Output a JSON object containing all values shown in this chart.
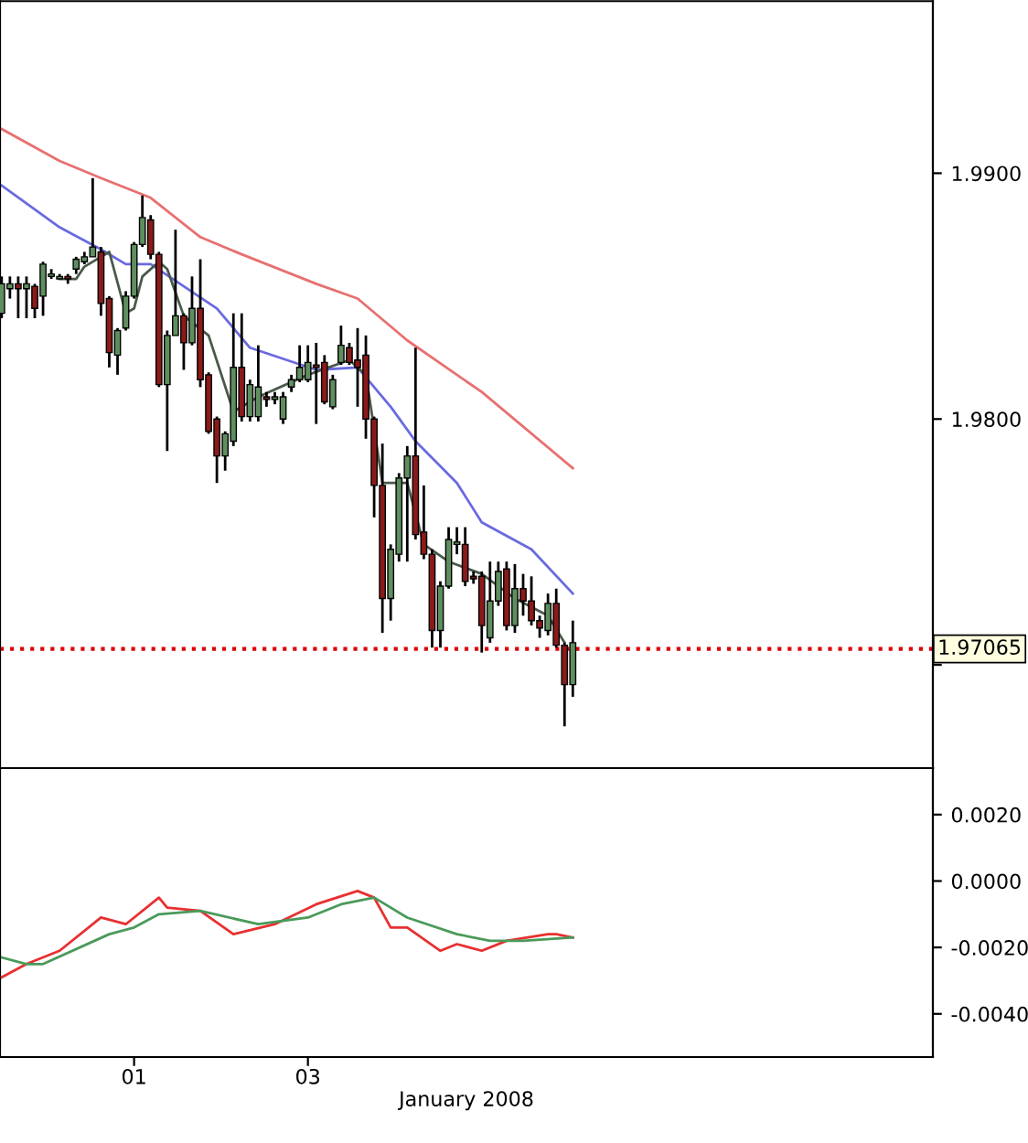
{
  "chart_data": [
    {
      "type": "candlestick",
      "categories": [
        null,
        null,
        null,
        null,
        null,
        null,
        null,
        null,
        null,
        null,
        null,
        null,
        null,
        null,
        null,
        null,
        "01",
        null,
        null,
        null,
        null,
        null,
        null,
        null,
        null,
        null,
        null,
        null,
        null,
        null,
        null,
        null,
        null,
        null,
        null,
        null,
        null,
        "03",
        null,
        null,
        null,
        null,
        null,
        null,
        null,
        null,
        null,
        null,
        null,
        null,
        null,
        null,
        null,
        null,
        null,
        null,
        null,
        null,
        null,
        null,
        null,
        null,
        null,
        null,
        null,
        null,
        null,
        null,
        null,
        null,
        null,
        null,
        null,
        null,
        null,
        null,
        null,
        null,
        null,
        null,
        null,
        null,
        null,
        null,
        null,
        null,
        null,
        null,
        null,
        null,
        null,
        null,
        null,
        null,
        null,
        null,
        null,
        null,
        null,
        null,
        null,
        null,
        null,
        null,
        null,
        null,
        null,
        null,
        null,
        null,
        null,
        null,
        null
      ],
      "ohlc": [
        [
          1.9843,
          1.9858,
          1.9841,
          1.9855
        ],
        [
          1.9853,
          1.9858,
          1.9849,
          1.9855
        ],
        [
          1.9855,
          1.9858,
          1.9841,
          1.9853
        ],
        [
          1.9853,
          1.9858,
          1.9841,
          1.9855
        ],
        [
          1.9854,
          1.9855,
          1.9841,
          1.9845
        ],
        [
          1.985,
          1.9864,
          1.9842,
          1.9863
        ],
        [
          1.9858,
          1.9861,
          1.9857,
          1.9859
        ],
        [
          1.9857,
          1.9859,
          1.9857,
          1.9858
        ],
        [
          1.9858,
          1.9859,
          1.9855,
          1.9857
        ],
        [
          1.9861,
          1.9866,
          1.9859,
          1.9865
        ],
        [
          1.9864,
          1.9868,
          1.9863,
          1.9866
        ],
        [
          1.9866,
          1.9898,
          1.9866,
          1.987
        ],
        [
          1.9868,
          1.987,
          1.9842,
          1.9847
        ],
        [
          1.9849,
          1.985,
          1.9821,
          1.9827
        ],
        [
          1.9826,
          1.9837,
          1.9818,
          1.9836
        ],
        [
          1.9837,
          1.9852,
          1.9836,
          1.985
        ],
        [
          1.985,
          1.9872,
          1.9849,
          1.9871
        ],
        [
          1.9871,
          1.9891,
          1.987,
          1.9882
        ],
        [
          1.9881,
          1.9883,
          1.9865,
          1.9867
        ],
        [
          1.9867,
          1.9868,
          1.9813,
          1.9814
        ],
        [
          1.9814,
          1.9836,
          1.9787,
          1.9834
        ],
        [
          1.9834,
          1.9877,
          1.9834,
          1.9842
        ],
        [
          1.9842,
          1.9843,
          1.982,
          1.9831
        ],
        [
          1.9831,
          1.9858,
          1.983,
          1.9845
        ],
        [
          1.9845,
          1.9865,
          1.9813,
          1.9816
        ],
        [
          1.9818,
          1.9819,
          1.9794,
          1.9795
        ],
        [
          1.98,
          1.9801,
          1.9774,
          1.9785
        ],
        [
          1.9785,
          1.9795,
          1.9779,
          1.9794
        ],
        [
          1.9791,
          1.9843,
          1.9789,
          1.9821
        ],
        [
          1.9821,
          1.9843,
          1.9799,
          1.9801
        ],
        [
          1.9801,
          1.9816,
          1.9799,
          1.9814
        ],
        [
          1.9801,
          1.983,
          1.9799,
          1.9813
        ],
        [
          1.9809,
          1.9811,
          1.9805,
          1.9808
        ],
        [
          1.9808,
          1.9811,
          1.9806,
          1.9809
        ],
        [
          1.98,
          1.9811,
          1.9798,
          1.9809
        ],
        [
          1.9813,
          1.9818,
          1.9811,
          1.9816
        ],
        [
          1.9816,
          1.983,
          1.9815,
          1.9821
        ],
        [
          1.9816,
          1.983,
          1.9815,
          1.9823
        ],
        [
          1.9822,
          1.9831,
          1.9798,
          1.9821
        ],
        [
          1.9823,
          1.9826,
          1.9806,
          1.9807
        ],
        [
          1.9805,
          1.9818,
          1.9804,
          1.9816
        ],
        [
          1.9823,
          1.9838,
          1.9822,
          1.983
        ],
        [
          1.9829,
          1.9831,
          1.9822,
          1.9823
        ],
        [
          1.9824,
          1.9837,
          1.9805,
          1.9821
        ],
        [
          1.9826,
          1.9834,
          1.9792,
          1.98
        ],
        [
          1.98,
          1.9801,
          1.976,
          1.9773
        ],
        [
          1.9773,
          1.979,
          1.9713,
          1.9727
        ],
        [
          1.9727,
          1.9749,
          1.9718,
          1.9747
        ],
        [
          1.9745,
          1.9778,
          1.9742,
          1.9776
        ],
        [
          1.9776,
          1.9789,
          1.9742,
          1.9785
        ],
        [
          1.9785,
          1.9829,
          1.9751,
          1.9753
        ],
        [
          1.9754,
          1.9773,
          1.9743,
          1.9745
        ],
        [
          1.9745,
          1.9747,
          1.9707,
          1.9714
        ],
        [
          1.9714,
          1.9734,
          1.9707,
          1.9732
        ],
        [
          1.9732,
          1.9756,
          1.9731,
          1.9751
        ],
        [
          1.9749,
          1.9756,
          1.9745,
          1.975
        ],
        [
          1.9749,
          1.9756,
          1.9732,
          1.9734
        ],
        [
          1.9736,
          1.9738,
          1.9733,
          1.9735
        ],
        [
          1.9736,
          1.9738,
          1.9705,
          1.9716
        ],
        [
          1.9711,
          1.9742,
          1.9709,
          1.9726
        ],
        [
          1.9726,
          1.9742,
          1.9724,
          1.9738
        ],
        [
          1.9739,
          1.9742,
          1.9714,
          1.9716
        ],
        [
          1.9716,
          1.9741,
          1.9713,
          1.9731
        ],
        [
          1.9731,
          1.9737,
          1.972,
          1.9726
        ],
        [
          1.9726,
          1.9736,
          1.9716,
          1.9718
        ],
        [
          1.9718,
          1.972,
          1.9711,
          1.9715
        ],
        [
          1.9714,
          1.9729,
          1.9712,
          1.9725
        ],
        [
          1.9725,
          1.9731,
          1.9707,
          1.9708
        ],
        [
          1.9708,
          1.9709,
          1.9675,
          1.9692
        ],
        [
          1.9692,
          1.9718,
          1.9687,
          1.9709
        ],
        null,
        null,
        null,
        null,
        null,
        null,
        null,
        null,
        null,
        null,
        null,
        null,
        null,
        null,
        null,
        null,
        null,
        null,
        null,
        null,
        null,
        null,
        null,
        null,
        null,
        null,
        null,
        null,
        null,
        null,
        null,
        null,
        null,
        null,
        null,
        null,
        null,
        null,
        null,
        null,
        null,
        null,
        null
      ],
      "series": [
        {
          "type": "line",
          "color": "#e87070",
          "values": [
            1.9918,
            null,
            null,
            null,
            null,
            null,
            null,
            1.9905,
            null,
            null,
            null,
            null,
            1.9898,
            null,
            null,
            null,
            null,
            null,
            1.989,
            null,
            null,
            null,
            null,
            null,
            1.9874,
            null,
            null,
            null,
            null,
            1.9867,
            null,
            null,
            null,
            null,
            null,
            null,
            null,
            null,
            1.9855,
            null,
            null,
            null,
            null,
            1.9849,
            null,
            null,
            null,
            null,
            null,
            1.9832,
            null,
            null,
            null,
            null,
            null,
            null,
            null,
            null,
            1.9811,
            null,
            null,
            null,
            null,
            null,
            null,
            null,
            null,
            null,
            null,
            1.978,
            null,
            null,
            null,
            null,
            null,
            null,
            null,
            null,
            null,
            null,
            null,
            null,
            null,
            null,
            null,
            null,
            null,
            null,
            null,
            null,
            null,
            null,
            null,
            null,
            null,
            null,
            null,
            null,
            null,
            null,
            null,
            null,
            null,
            null,
            null,
            null,
            null,
            null,
            null,
            null,
            null,
            null,
            null
          ]
        },
        {
          "type": "line",
          "color": "#6a6ae0",
          "values": [
            1.9895,
            null,
            null,
            null,
            null,
            null,
            null,
            1.9878,
            null,
            null,
            null,
            null,
            1.9869,
            null,
            null,
            1.9863,
            null,
            null,
            1.9863,
            null,
            null,
            null,
            1.9854,
            null,
            null,
            null,
            1.9845,
            null,
            null,
            null,
            1.9829,
            null,
            null,
            null,
            null,
            null,
            null,
            null,
            1.982,
            null,
            null,
            null,
            null,
            1.9821,
            null,
            null,
            null,
            1.9805,
            null,
            null,
            1.9791,
            null,
            null,
            null,
            null,
            1.9774,
            null,
            null,
            1.9758,
            null,
            null,
            null,
            null,
            null,
            1.9747,
            null,
            null,
            null,
            null,
            1.9729,
            null,
            null,
            null,
            null,
            null,
            null,
            null,
            null,
            null,
            null,
            null,
            null,
            null,
            null,
            null,
            null,
            null,
            null,
            null,
            null,
            null,
            null,
            null,
            null,
            null,
            null,
            null,
            null,
            null,
            null,
            null,
            null,
            null,
            null,
            null,
            null,
            null,
            null,
            null,
            null,
            null,
            null,
            null
          ]
        },
        {
          "type": "line",
          "color": "#4a5a4a",
          "values": [
            null,
            null,
            null,
            null,
            null,
            null,
            null,
            1.9857,
            null,
            1.9857,
            1.9862,
            null,
            null,
            1.9868,
            null,
            1.9843,
            1.9845,
            1.9858,
            null,
            1.9864,
            1.9861,
            null,
            1.9842,
            null,
            null,
            1.9834,
            null,
            null,
            1.9803,
            null,
            null,
            1.9809,
            null,
            null,
            null,
            null,
            null,
            1.9818,
            null,
            null,
            null,
            null,
            1.9824,
            null,
            1.9818,
            null,
            1.9774,
            null,
            null,
            1.9774,
            null,
            1.9749,
            null,
            null,
            1.9742,
            null,
            null,
            null,
            1.9737,
            null,
            null,
            null,
            1.9727,
            null,
            null,
            null,
            1.972,
            null,
            1.9709,
            null,
            null,
            null,
            null,
            null,
            null,
            null,
            null,
            null,
            null,
            null,
            null,
            null,
            null,
            null,
            null,
            null,
            null,
            null,
            null,
            null,
            null,
            null,
            null,
            null,
            null,
            null,
            null,
            null,
            null,
            null,
            null,
            null,
            null,
            null,
            null,
            null,
            null,
            null,
            null,
            null,
            null,
            null,
            null
          ]
        }
      ],
      "ylim": [
        1.9658,
        1.997
      ],
      "yticks": [
        {
          "value": 1.97,
          "label": null
        },
        {
          "value": 1.98,
          "label": "1.9800"
        },
        {
          "value": 1.99,
          "label": "1.9900"
        }
      ],
      "ref_lines": [
        {
          "axis": "y",
          "value": 1.97065,
          "label": "1.97065",
          "color": "#dd0000",
          "line_style": "dotted"
        }
      ],
      "tick_labels": "y"
    },
    {
      "type": "line",
      "categories": [
        null,
        null,
        null,
        null,
        null,
        null,
        null,
        null,
        null,
        null,
        null,
        null,
        null,
        null,
        null,
        null,
        "01",
        null,
        null,
        null,
        null,
        null,
        null,
        null,
        null,
        null,
        null,
        null,
        null,
        null,
        null,
        null,
        null,
        null,
        null,
        null,
        null,
        "03",
        null,
        null,
        null,
        null,
        null,
        null,
        null,
        null,
        null,
        null,
        null,
        null,
        null,
        null,
        null,
        null,
        null,
        null,
        null,
        null,
        null,
        null,
        null,
        null,
        null,
        null,
        null,
        null,
        null,
        null,
        null,
        null,
        null,
        null,
        null,
        null,
        null,
        null,
        null,
        null,
        null,
        null,
        null,
        null,
        null,
        null,
        null,
        null,
        null,
        null,
        null,
        null,
        null,
        null,
        null,
        null,
        null,
        null,
        null,
        null,
        null,
        null,
        null,
        null,
        null,
        null,
        null,
        null,
        null,
        null,
        null,
        null,
        null,
        null,
        null
      ],
      "series": [
        {
          "color": "#e83030",
          "values": [
            -0.0029,
            null,
            null,
            -0.0025,
            null,
            null,
            null,
            -0.0021,
            null,
            null,
            null,
            null,
            -0.0011,
            null,
            null,
            -0.0013,
            null,
            null,
            null,
            -0.0005,
            -0.0008,
            null,
            null,
            null,
            -0.0009,
            null,
            null,
            null,
            -0.0016,
            null,
            null,
            null,
            null,
            -0.0013,
            null,
            null,
            null,
            null,
            -0.0007,
            null,
            null,
            null,
            null,
            -0.0003,
            null,
            -0.0005,
            null,
            -0.0014,
            null,
            -0.0014,
            null,
            null,
            null,
            -0.0021,
            null,
            -0.0019,
            null,
            null,
            -0.0021,
            null,
            null,
            -0.0018,
            null,
            null,
            null,
            null,
            -0.0016,
            -0.0016,
            null,
            -0.0017,
            null,
            null,
            null,
            null,
            null,
            null,
            null,
            null,
            null,
            null,
            null,
            null,
            null,
            null,
            null,
            null,
            null,
            null,
            null,
            null,
            null,
            null,
            null,
            null,
            null,
            null,
            null,
            null,
            null,
            null,
            null,
            null,
            null,
            null,
            null,
            null,
            null,
            null,
            null,
            null,
            null,
            null,
            null
          ]
        },
        {
          "color": "#4a9a5a",
          "values": [
            -0.0023,
            null,
            null,
            -0.0025,
            null,
            -0.0025,
            null,
            null,
            null,
            null,
            null,
            null,
            null,
            -0.0016,
            null,
            null,
            -0.0014,
            null,
            null,
            -0.001,
            null,
            null,
            null,
            null,
            -0.0009,
            null,
            null,
            null,
            null,
            null,
            null,
            -0.0013,
            null,
            null,
            null,
            null,
            null,
            -0.0011,
            null,
            null,
            null,
            -0.0007,
            null,
            null,
            null,
            -0.0005,
            null,
            null,
            null,
            -0.0011,
            null,
            null,
            null,
            null,
            null,
            -0.0016,
            null,
            null,
            null,
            -0.0018,
            null,
            null,
            null,
            -0.0018,
            null,
            null,
            null,
            null,
            null,
            -0.0017,
            null,
            null,
            null,
            null,
            null,
            null,
            null,
            null,
            null,
            null,
            null,
            null,
            null,
            null,
            null,
            null,
            null,
            null,
            null,
            null,
            null,
            null,
            null,
            null,
            null,
            null,
            null,
            null,
            null,
            null,
            null,
            null,
            null,
            null,
            null,
            null,
            null,
            null,
            null,
            null,
            null,
            null,
            null
          ]
        }
      ],
      "xlabel": "January 2008",
      "ylim": [
        -0.0053,
        0.0034
      ],
      "yticks": [
        {
          "value": 0.002,
          "label": "0.0020"
        },
        {
          "value": 0.0,
          "label": "0.0000"
        },
        {
          "value": -0.002,
          "label": "-0.0020"
        },
        {
          "value": -0.004,
          "label": "-0.0040"
        }
      ]
    }
  ]
}
